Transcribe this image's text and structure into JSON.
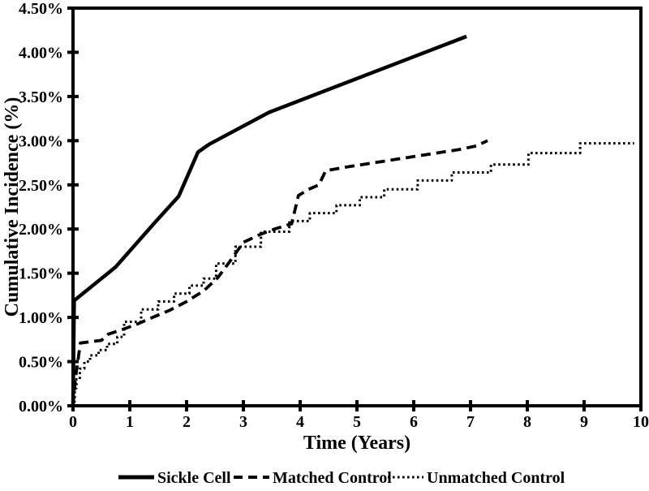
{
  "figure": {
    "xlabel": "Time (Years)",
    "ylabel": "Cumulative Incidence (%)",
    "line_color": "#000000",
    "background_color": "#ffffff",
    "legend": [
      {
        "label": "Sickle Cell",
        "style": "solid"
      },
      {
        "label": "Matched Control",
        "style": "dashed"
      },
      {
        "label": "Unmatched Control",
        "style": "dotted"
      }
    ]
  },
  "chart_data": {
    "type": "line",
    "title": "",
    "xlabel": "Time (Years)",
    "ylabel": "Cumulative Incidence (%)",
    "xlim": [
      0,
      10
    ],
    "ylim": [
      0,
      4.5
    ],
    "grid": false,
    "legend_position": "bottom",
    "x_ticks": [
      0,
      1,
      2,
      3,
      4,
      5,
      6,
      7,
      8,
      9,
      10
    ],
    "y_ticks": [
      {
        "value": 0.0,
        "label": "0.00%"
      },
      {
        "value": 0.5,
        "label": "0.50%"
      },
      {
        "value": 1.0,
        "label": "1.00%"
      },
      {
        "value": 1.5,
        "label": "1.50%"
      },
      {
        "value": 2.0,
        "label": "2.00%"
      },
      {
        "value": 2.5,
        "label": "2.50%"
      },
      {
        "value": 3.0,
        "label": "3.00%"
      },
      {
        "value": 3.5,
        "label": "3.50%"
      },
      {
        "value": 4.0,
        "label": "4.00%"
      },
      {
        "value": 4.5,
        "label": "4.50%"
      }
    ],
    "series": [
      {
        "name": "Sickle Cell",
        "style": "solid",
        "line_type": "linear",
        "points": [
          [
            0,
            0
          ],
          [
            0.02,
            1.19
          ],
          [
            0.75,
            1.57
          ],
          [
            1.45,
            2.08
          ],
          [
            1.86,
            2.37
          ],
          [
            2.2,
            2.87
          ],
          [
            2.4,
            2.96
          ],
          [
            3.45,
            3.32
          ],
          [
            6.93,
            4.18
          ]
        ]
      },
      {
        "name": "Matched Control",
        "style": "dashed",
        "line_type": "linear",
        "points": [
          [
            0,
            0
          ],
          [
            0.04,
            0.3
          ],
          [
            0.13,
            0.71
          ],
          [
            0.5,
            0.74
          ],
          [
            0.62,
            0.81
          ],
          [
            0.9,
            0.87
          ],
          [
            1.15,
            0.93
          ],
          [
            1.4,
            1.0
          ],
          [
            1.7,
            1.08
          ],
          [
            2.0,
            1.18
          ],
          [
            2.3,
            1.3
          ],
          [
            2.55,
            1.45
          ],
          [
            2.78,
            1.65
          ],
          [
            3.0,
            1.85
          ],
          [
            3.3,
            1.94
          ],
          [
            3.55,
            2.0
          ],
          [
            3.85,
            2.06
          ],
          [
            3.97,
            2.38
          ],
          [
            4.15,
            2.45
          ],
          [
            4.33,
            2.5
          ],
          [
            4.45,
            2.66
          ],
          [
            4.8,
            2.7
          ],
          [
            5.2,
            2.74
          ],
          [
            5.6,
            2.78
          ],
          [
            6.0,
            2.82
          ],
          [
            6.4,
            2.86
          ],
          [
            6.8,
            2.9
          ],
          [
            7.1,
            2.94
          ],
          [
            7.3,
            3.0
          ]
        ]
      },
      {
        "name": "Unmatched Control",
        "style": "dotted",
        "line_type": "step",
        "points": [
          [
            0,
            0.05
          ],
          [
            0.03,
            0.2
          ],
          [
            0.06,
            0.3
          ],
          [
            0.12,
            0.42
          ],
          [
            0.2,
            0.5
          ],
          [
            0.3,
            0.57
          ],
          [
            0.45,
            0.63
          ],
          [
            0.6,
            0.7
          ],
          [
            0.78,
            0.78
          ],
          [
            0.9,
            0.95
          ],
          [
            1.2,
            1.09
          ],
          [
            1.5,
            1.18
          ],
          [
            1.78,
            1.27
          ],
          [
            2.05,
            1.36
          ],
          [
            2.3,
            1.44
          ],
          [
            2.52,
            1.61
          ],
          [
            2.86,
            1.8
          ],
          [
            3.31,
            1.97
          ],
          [
            3.81,
            2.09
          ],
          [
            4.17,
            2.18
          ],
          [
            4.64,
            2.27
          ],
          [
            5.05,
            2.36
          ],
          [
            5.48,
            2.45
          ],
          [
            6.07,
            2.55
          ],
          [
            6.67,
            2.64
          ],
          [
            7.36,
            2.73
          ],
          [
            8.02,
            2.86
          ],
          [
            8.93,
            2.97
          ],
          [
            9.88,
            2.97
          ]
        ]
      }
    ]
  }
}
